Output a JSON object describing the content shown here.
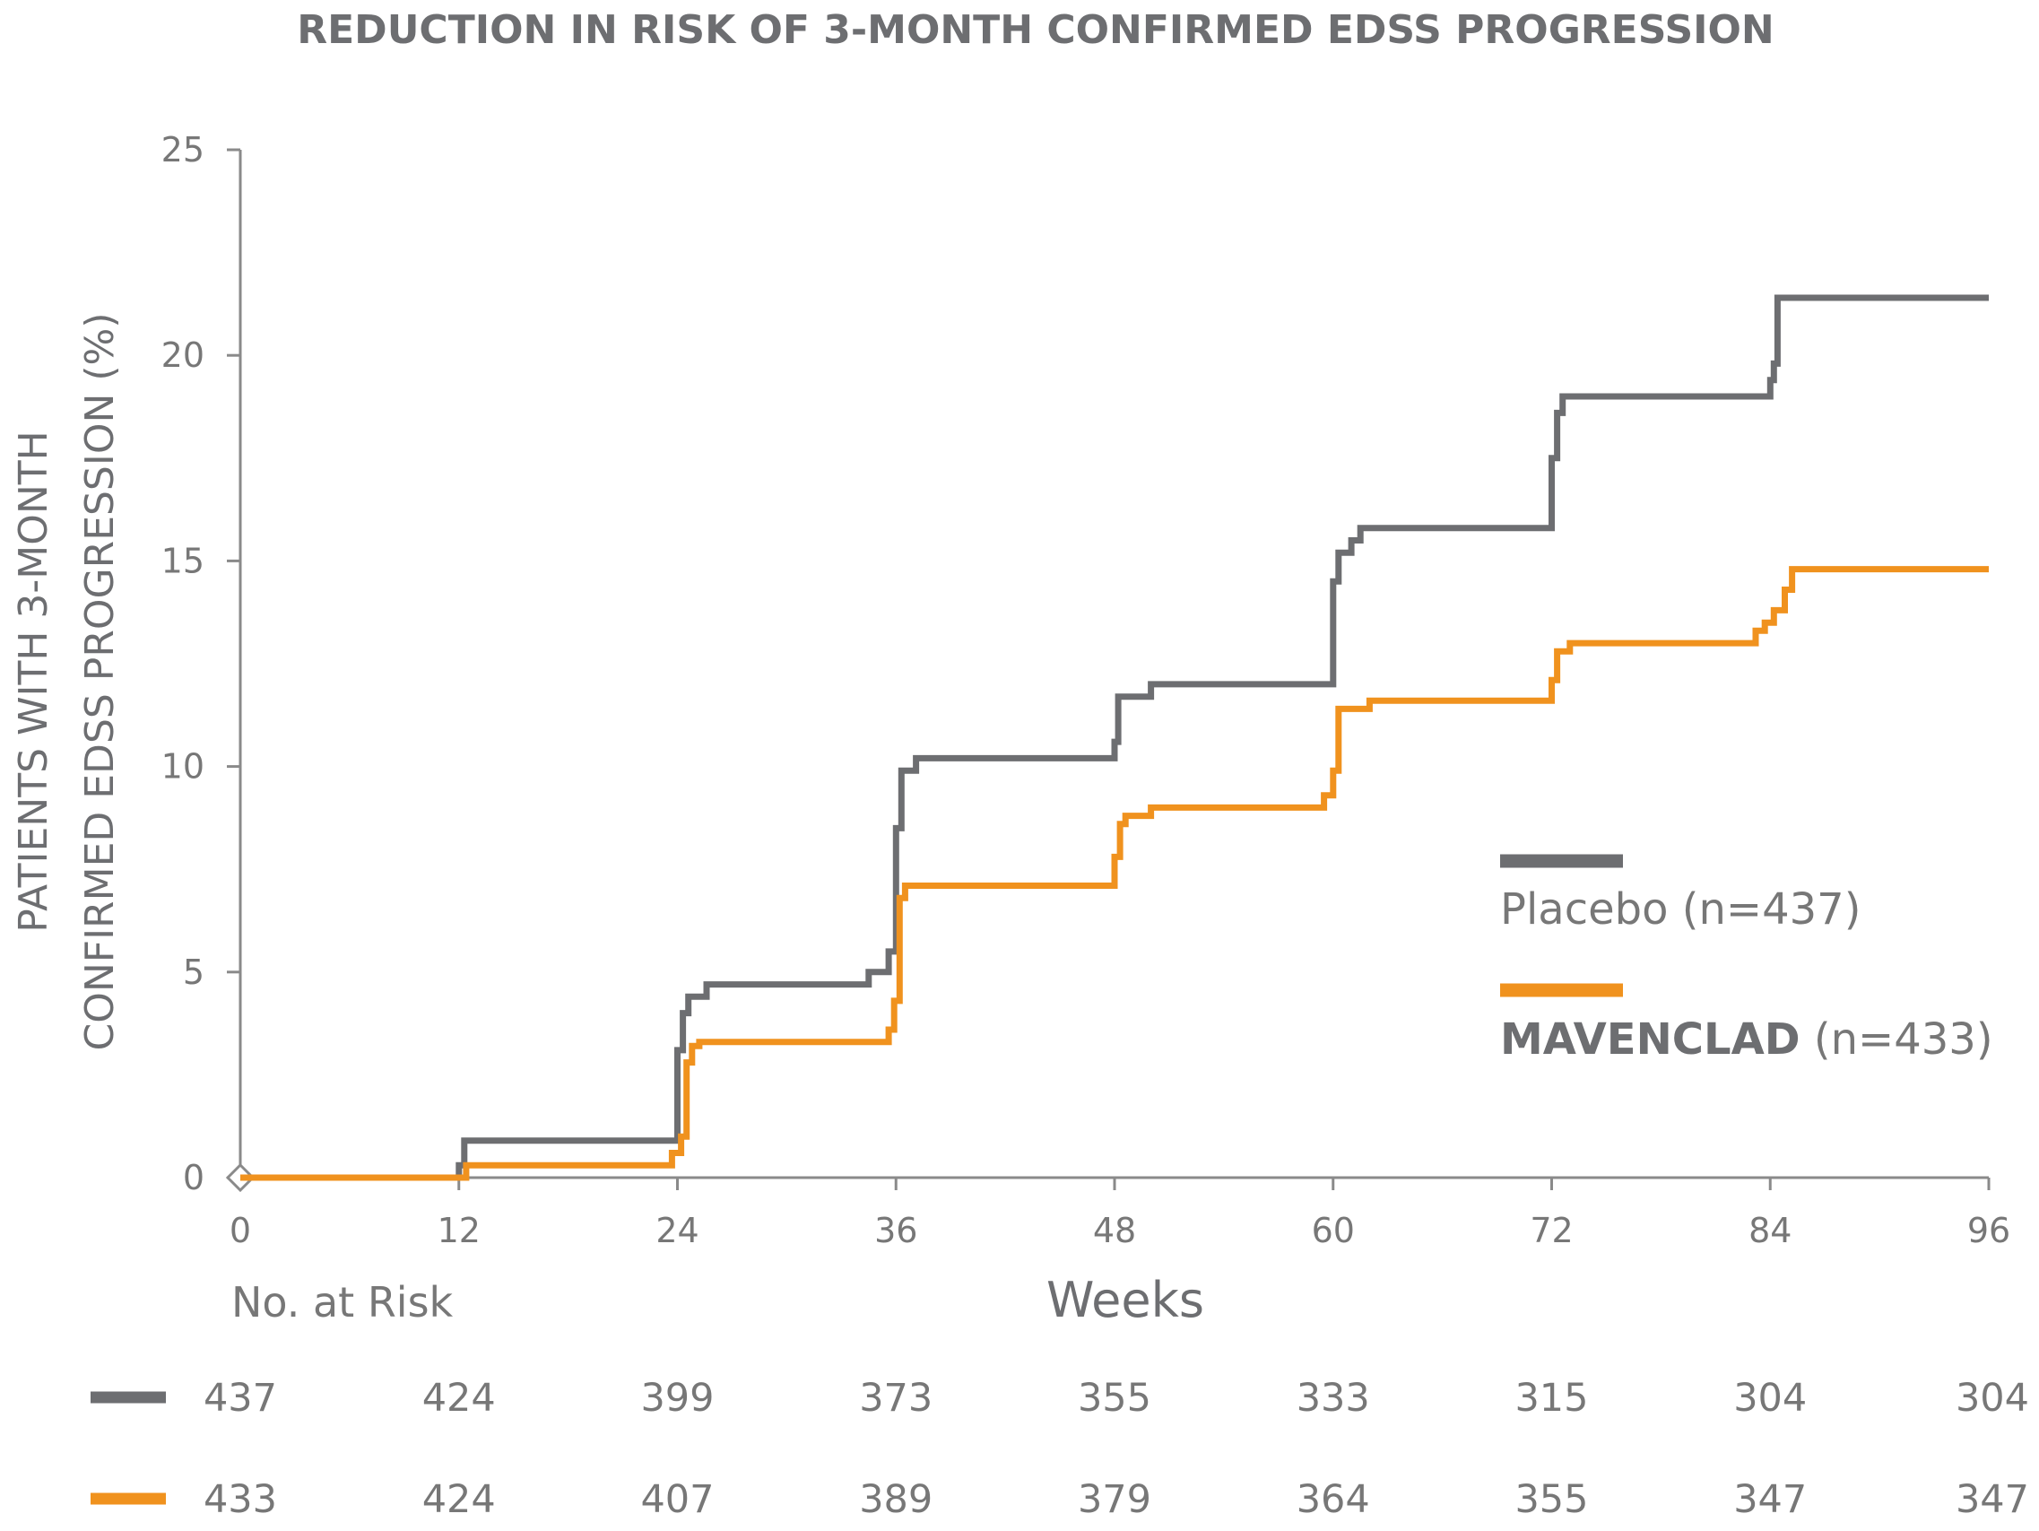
{
  "chart_data": {
    "type": "line",
    "title": "REDUCTION IN RISK OF 3-MONTH CONFIRMED EDSS PROGRESSION",
    "ylabel_line1": "PATIENTS WITH 3-MONTH",
    "ylabel_line2": "CONFIRMED EDSS PROGRESSION (%)",
    "xlabel": "Weeks",
    "xlim": [
      0,
      96
    ],
    "ylim": [
      0,
      25
    ],
    "x_ticks": [
      0,
      12,
      24,
      36,
      48,
      60,
      72,
      84,
      96
    ],
    "y_ticks": [
      0,
      5,
      10,
      15,
      20,
      25
    ],
    "grid": false,
    "legend_placement": "right",
    "series": [
      {
        "name": "Placebo",
        "name_suffix": " (n=437)",
        "color": "#6d6e71",
        "step_points": [
          [
            0,
            0
          ],
          [
            12,
            0
          ],
          [
            12,
            0.3
          ],
          [
            12.3,
            0.3
          ],
          [
            12.3,
            0.9
          ],
          [
            24,
            0.9
          ],
          [
            24,
            3.1
          ],
          [
            24.3,
            3.1
          ],
          [
            24.3,
            4.0
          ],
          [
            24.6,
            4.0
          ],
          [
            24.6,
            4.4
          ],
          [
            25.6,
            4.4
          ],
          [
            25.6,
            4.7
          ],
          [
            34.5,
            4.7
          ],
          [
            34.5,
            5.0
          ],
          [
            35.6,
            5.0
          ],
          [
            35.6,
            5.5
          ],
          [
            36,
            5.5
          ],
          [
            36,
            8.5
          ],
          [
            36.3,
            8.5
          ],
          [
            36.3,
            9.9
          ],
          [
            37.1,
            9.9
          ],
          [
            37.1,
            10.2
          ],
          [
            48,
            10.2
          ],
          [
            48,
            10.6
          ],
          [
            48.2,
            10.6
          ],
          [
            48.2,
            11.7
          ],
          [
            50,
            11.7
          ],
          [
            50,
            12.0
          ],
          [
            60,
            12.0
          ],
          [
            60,
            14.5
          ],
          [
            60.3,
            14.5
          ],
          [
            60.3,
            15.2
          ],
          [
            61,
            15.2
          ],
          [
            61,
            15.5
          ],
          [
            61.5,
            15.5
          ],
          [
            61.5,
            15.8
          ],
          [
            72,
            15.8
          ],
          [
            72,
            17.5
          ],
          [
            72.3,
            17.5
          ],
          [
            72.3,
            18.6
          ],
          [
            72.6,
            18.6
          ],
          [
            72.6,
            19.0
          ],
          [
            84,
            19.0
          ],
          [
            84,
            19.4
          ],
          [
            84.2,
            19.4
          ],
          [
            84.2,
            19.8
          ],
          [
            84.4,
            19.8
          ],
          [
            84.4,
            21.4
          ],
          [
            96,
            21.4
          ]
        ]
      },
      {
        "name": "MAVENCLAD",
        "name_suffix": " (n=433)",
        "color": "#f0921e",
        "step_points": [
          [
            0,
            0
          ],
          [
            12.4,
            0
          ],
          [
            12.4,
            0.3
          ],
          [
            23.7,
            0.3
          ],
          [
            23.7,
            0.6
          ],
          [
            24.2,
            0.6
          ],
          [
            24.2,
            1.0
          ],
          [
            24.5,
            1.0
          ],
          [
            24.5,
            2.8
          ],
          [
            24.8,
            2.8
          ],
          [
            24.8,
            3.2
          ],
          [
            25.2,
            3.2
          ],
          [
            25.2,
            3.3
          ],
          [
            35.6,
            3.3
          ],
          [
            35.6,
            3.6
          ],
          [
            35.9,
            3.6
          ],
          [
            35.9,
            4.3
          ],
          [
            36.2,
            4.3
          ],
          [
            36.2,
            6.8
          ],
          [
            36.5,
            6.8
          ],
          [
            36.5,
            7.1
          ],
          [
            48,
            7.1
          ],
          [
            48,
            7.8
          ],
          [
            48.3,
            7.8
          ],
          [
            48.3,
            8.6
          ],
          [
            48.6,
            8.6
          ],
          [
            48.6,
            8.8
          ],
          [
            50,
            8.8
          ],
          [
            50,
            9.0
          ],
          [
            59.5,
            9.0
          ],
          [
            59.5,
            9.3
          ],
          [
            60,
            9.3
          ],
          [
            60,
            9.9
          ],
          [
            60.3,
            9.9
          ],
          [
            60.3,
            11.4
          ],
          [
            62,
            11.4
          ],
          [
            62,
            11.6
          ],
          [
            72,
            11.6
          ],
          [
            72,
            12.1
          ],
          [
            72.3,
            12.1
          ],
          [
            72.3,
            12.8
          ],
          [
            73,
            12.8
          ],
          [
            73,
            13.0
          ],
          [
            83.2,
            13.0
          ],
          [
            83.2,
            13.3
          ],
          [
            83.7,
            13.3
          ],
          [
            83.7,
            13.5
          ],
          [
            84.2,
            13.5
          ],
          [
            84.2,
            13.8
          ],
          [
            84.8,
            13.8
          ],
          [
            84.8,
            14.3
          ],
          [
            85.2,
            14.3
          ],
          [
            85.2,
            14.8
          ],
          [
            96,
            14.8
          ]
        ]
      }
    ],
    "number_at_risk": {
      "label": "No. at Risk",
      "weeks": [
        0,
        12,
        24,
        36,
        48,
        60,
        72,
        84,
        96
      ],
      "rows": [
        {
          "series": "Placebo",
          "color": "#6d6e71",
          "values": [
            "437",
            "424",
            "399",
            "373",
            "355",
            "333",
            "315",
            "304",
            "304"
          ]
        },
        {
          "series": "MAVENCLAD",
          "color": "#f0921e",
          "values": [
            "433",
            "424",
            "407",
            "389",
            "379",
            "364",
            "355",
            "347",
            "347"
          ]
        }
      ]
    }
  }
}
